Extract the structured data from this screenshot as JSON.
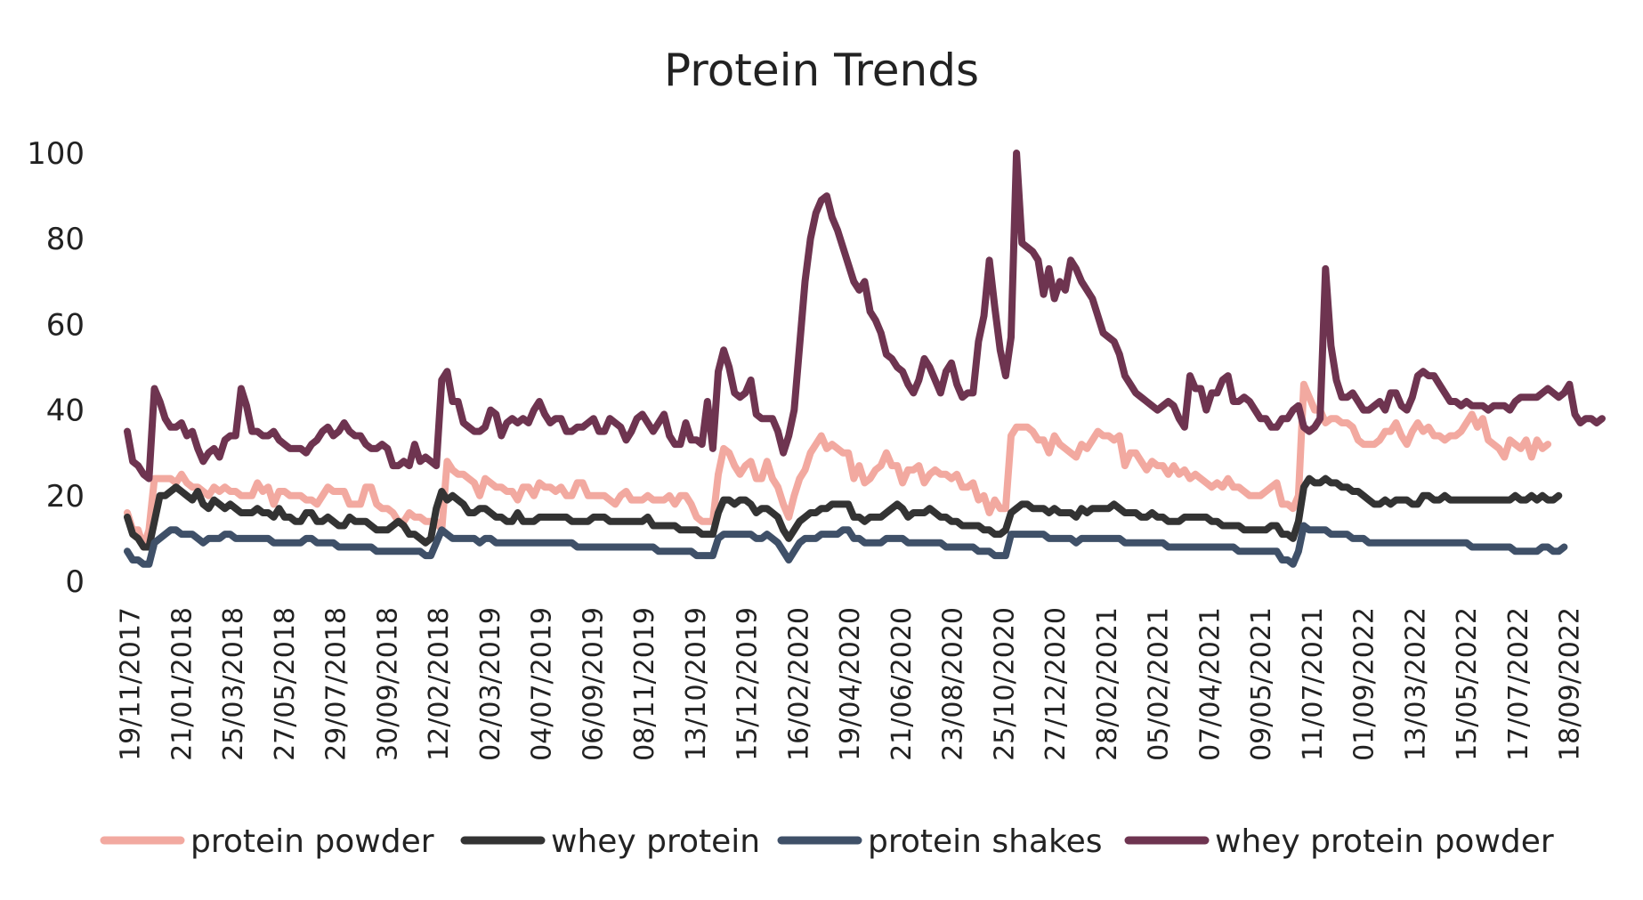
{
  "chart_data": {
    "type": "line",
    "title": "Protein Trends",
    "xlabel": "",
    "ylabel": "",
    "ylim": [
      0,
      100
    ],
    "yticks": [
      0,
      20,
      40,
      60,
      80,
      100
    ],
    "grid": false,
    "legend_position": "bottom",
    "x_tick_labels": [
      "19/11/2017",
      "21/01/2018",
      "25/03/2018",
      "27/05/2018",
      "29/07/2018",
      "30/09/2018",
      "12/02/2018",
      "02/03/2019",
      "04/07/2019",
      "06/09/2019",
      "08/11/2019",
      "13/10/2019",
      "15/12/2019",
      "16/02/2020",
      "19/04/2020",
      "21/06/2020",
      "23/08/2020",
      "25/10/2020",
      "27/12/2020",
      "28/02/2021",
      "05/02/2021",
      "07/04/2021",
      "09/05/2021",
      "11/07/2021",
      "01/09/2022",
      "13/03/2022",
      "15/05/2022",
      "17/07/2022",
      "18/09/2022"
    ],
    "series": [
      {
        "name": "protein powder",
        "color": "#F2A9A0",
        "values": [
          16,
          12,
          12,
          8,
          12,
          24,
          24,
          24,
          24,
          23,
          25,
          23,
          22,
          22,
          21,
          20,
          22,
          21,
          22,
          21,
          21,
          20,
          20,
          20,
          23,
          21,
          22,
          18,
          21,
          21,
          20,
          20,
          20,
          19,
          19,
          18,
          20,
          22,
          21,
          21,
          21,
          18,
          18,
          18,
          22,
          22,
          18,
          17,
          17,
          16,
          14,
          14,
          16,
          15,
          15,
          14,
          14,
          14,
          12,
          28,
          26,
          25,
          25,
          24,
          23,
          20,
          24,
          23,
          22,
          22,
          21,
          21,
          19,
          22,
          22,
          20,
          23,
          22,
          22,
          21,
          22,
          20,
          20,
          23,
          23,
          20,
          20,
          20,
          20,
          19,
          18,
          20,
          21,
          19,
          19,
          19,
          20,
          19,
          19,
          19,
          20,
          18,
          20,
          20,
          18,
          15,
          14,
          14,
          14,
          25,
          31,
          30,
          27,
          25,
          27,
          28,
          24,
          24,
          28,
          24,
          22,
          18,
          15,
          20,
          24,
          26,
          30,
          32,
          34,
          31,
          32,
          31,
          30,
          30,
          24,
          27,
          23,
          24,
          26,
          27,
          30,
          27,
          27,
          23,
          26,
          26,
          27,
          23,
          25,
          26,
          25,
          25,
          24,
          25,
          22,
          22,
          23,
          19,
          20,
          16,
          19,
          17,
          17,
          34,
          36,
          36,
          36,
          35,
          33,
          33,
          30,
          34,
          32,
          31,
          30,
          29,
          32,
          31,
          33,
          35,
          34,
          34,
          33,
          34,
          27,
          30,
          30,
          28,
          26,
          28,
          27,
          27,
          25,
          27,
          25,
          26,
          24,
          25,
          24,
          23,
          22,
          23,
          22,
          24,
          22,
          22,
          21,
          20,
          20,
          20,
          21,
          22,
          23,
          18,
          18,
          17,
          20,
          46,
          43,
          40,
          40,
          37,
          38,
          38,
          37,
          37,
          36,
          33,
          32,
          32,
          32,
          33,
          35,
          35,
          37,
          34,
          32,
          35,
          37,
          35,
          36,
          34,
          34,
          33,
          34,
          34,
          35,
          37,
          39,
          36,
          38,
          33,
          32,
          31,
          29,
          33,
          32,
          31,
          33,
          29,
          33,
          31,
          32
        ]
      },
      {
        "name": "whey protein",
        "color": "#333333",
        "values": [
          15,
          11,
          10,
          8,
          8,
          14,
          20,
          20,
          21,
          22,
          21,
          20,
          19,
          21,
          18,
          17,
          19,
          18,
          17,
          18,
          17,
          16,
          16,
          16,
          17,
          16,
          16,
          15,
          17,
          15,
          15,
          14,
          14,
          16,
          16,
          14,
          14,
          15,
          14,
          13,
          13,
          15,
          14,
          14,
          14,
          13,
          12,
          12,
          12,
          13,
          14,
          13,
          11,
          11,
          10,
          9,
          10,
          17,
          21,
          19,
          20,
          19,
          18,
          16,
          16,
          17,
          17,
          16,
          15,
          15,
          14,
          14,
          16,
          14,
          14,
          14,
          15,
          15,
          15,
          15,
          15,
          15,
          14,
          14,
          14,
          14,
          15,
          15,
          15,
          14,
          14,
          14,
          14,
          14,
          14,
          14,
          15,
          13,
          13,
          13,
          13,
          13,
          12,
          12,
          12,
          12,
          11,
          11,
          11,
          16,
          19,
          19,
          18,
          19,
          19,
          18,
          16,
          17,
          17,
          16,
          15,
          12,
          10,
          12,
          14,
          15,
          16,
          16,
          17,
          17,
          18,
          18,
          18,
          18,
          15,
          15,
          14,
          15,
          15,
          15,
          16,
          17,
          18,
          17,
          15,
          16,
          16,
          16,
          17,
          16,
          15,
          15,
          14,
          14,
          13,
          13,
          13,
          13,
          12,
          12,
          11,
          11,
          12,
          16,
          17,
          18,
          18,
          17,
          17,
          17,
          16,
          17,
          16,
          16,
          16,
          15,
          17,
          16,
          17,
          17,
          17,
          17,
          18,
          17,
          16,
          16,
          16,
          15,
          15,
          16,
          15,
          15,
          14,
          14,
          14,
          15,
          15,
          15,
          15,
          15,
          14,
          14,
          13,
          13,
          13,
          13,
          12,
          12,
          12,
          12,
          12,
          13,
          13,
          11,
          11,
          10,
          14,
          22,
          24,
          23,
          23,
          24,
          23,
          23,
          22,
          22,
          21,
          21,
          20,
          19,
          18,
          18,
          19,
          18,
          19,
          19,
          19,
          18,
          18,
          20,
          20,
          19,
          19,
          20,
          19,
          19,
          19,
          19,
          19,
          19,
          19,
          19,
          19,
          19,
          19,
          19,
          20,
          19,
          19,
          20,
          19,
          20,
          19,
          19,
          20
        ]
      },
      {
        "name": "protein shakes",
        "color": "#3F5068",
        "values": [
          7,
          5,
          5,
          4,
          4,
          9,
          10,
          11,
          12,
          12,
          11,
          11,
          11,
          10,
          9,
          10,
          10,
          10,
          11,
          11,
          10,
          10,
          10,
          10,
          10,
          10,
          10,
          9,
          9,
          9,
          9,
          9,
          9,
          10,
          10,
          9,
          9,
          9,
          9,
          8,
          8,
          8,
          8,
          8,
          8,
          8,
          7,
          7,
          7,
          7,
          7,
          7,
          7,
          7,
          7,
          6,
          6,
          9,
          12,
          11,
          10,
          10,
          10,
          10,
          10,
          9,
          10,
          10,
          9,
          9,
          9,
          9,
          9,
          9,
          9,
          9,
          9,
          9,
          9,
          9,
          9,
          9,
          9,
          8,
          8,
          8,
          8,
          8,
          8,
          8,
          8,
          8,
          8,
          8,
          8,
          8,
          8,
          8,
          7,
          7,
          7,
          7,
          7,
          7,
          7,
          6,
          6,
          6,
          6,
          10,
          11,
          11,
          11,
          11,
          11,
          11,
          10,
          10,
          11,
          10,
          9,
          7,
          5,
          7,
          9,
          10,
          10,
          10,
          11,
          11,
          11,
          11,
          12,
          12,
          10,
          10,
          9,
          9,
          9,
          9,
          10,
          10,
          10,
          10,
          9,
          9,
          9,
          9,
          9,
          9,
          9,
          8,
          8,
          8,
          8,
          8,
          8,
          7,
          7,
          7,
          6,
          6,
          6,
          11,
          11,
          11,
          11,
          11,
          11,
          11,
          10,
          10,
          10,
          10,
          10,
          9,
          10,
          10,
          10,
          10,
          10,
          10,
          10,
          10,
          9,
          9,
          9,
          9,
          9,
          9,
          9,
          9,
          8,
          8,
          8,
          8,
          8,
          8,
          8,
          8,
          8,
          8,
          8,
          8,
          8,
          7,
          7,
          7,
          7,
          7,
          7,
          7,
          7,
          5,
          5,
          4,
          7,
          13,
          12,
          12,
          12,
          12,
          11,
          11,
          11,
          11,
          10,
          10,
          10,
          9,
          9,
          9,
          9,
          9,
          9,
          9,
          9,
          9,
          9,
          9,
          9,
          9,
          9,
          9,
          9,
          9,
          9,
          9,
          8,
          8,
          8,
          8,
          8,
          8,
          8,
          8,
          7,
          7,
          7,
          7,
          7,
          8,
          8,
          7,
          7,
          8
        ]
      },
      {
        "name": "whey protein powder",
        "color": "#6E3450",
        "values": [
          35,
          28,
          27,
          25,
          24,
          45,
          42,
          38,
          36,
          36,
          37,
          34,
          35,
          31,
          28,
          30,
          31,
          29,
          33,
          34,
          34,
          45,
          41,
          35,
          35,
          34,
          34,
          35,
          33,
          32,
          31,
          31,
          31,
          30,
          32,
          33,
          35,
          36,
          34,
          35,
          37,
          35,
          34,
          34,
          32,
          31,
          31,
          32,
          31,
          27,
          27,
          28,
          27,
          32,
          28,
          29,
          28,
          27,
          47,
          49,
          42,
          42,
          37,
          36,
          35,
          35,
          36,
          40,
          39,
          34,
          37,
          38,
          37,
          38,
          37,
          40,
          42,
          39,
          37,
          38,
          38,
          35,
          35,
          36,
          36,
          37,
          38,
          35,
          35,
          38,
          37,
          36,
          33,
          35,
          38,
          39,
          37,
          35,
          37,
          39,
          34,
          32,
          32,
          37,
          33,
          33,
          32,
          42,
          31,
          49,
          54,
          50,
          44,
          43,
          44,
          47,
          39,
          38,
          38,
          38,
          35,
          30,
          34,
          40,
          55,
          70,
          80,
          86,
          89,
          90,
          85,
          82,
          78,
          74,
          70,
          68,
          70,
          63,
          61,
          58,
          53,
          52,
          50,
          49,
          46,
          44,
          47,
          52,
          50,
          47,
          44,
          49,
          51,
          46,
          43,
          44,
          44,
          56,
          62,
          75,
          64,
          54,
          48,
          57,
          100,
          79,
          78,
          77,
          75,
          67,
          73,
          66,
          70,
          68,
          75,
          73,
          70,
          68,
          66,
          62,
          58,
          57,
          56,
          53,
          48,
          46,
          44,
          43,
          42,
          41,
          40,
          41,
          42,
          41,
          38,
          36,
          48,
          45,
          45,
          40,
          44,
          44,
          47,
          48,
          42,
          42,
          43,
          42,
          40,
          38,
          38,
          36,
          36,
          38,
          38,
          40,
          41,
          36,
          35,
          36,
          38,
          73,
          55,
          47,
          43,
          43,
          44,
          42,
          40,
          40,
          41,
          42,
          40,
          44,
          44,
          41,
          40,
          43,
          48,
          49,
          48,
          48,
          46,
          44,
          42,
          42,
          41,
          42,
          41,
          41,
          41,
          40,
          41,
          41,
          41,
          40,
          42,
          43,
          43,
          43,
          43,
          44,
          45,
          44,
          43,
          44,
          46,
          39,
          37,
          38,
          38,
          37,
          38
        ]
      }
    ]
  }
}
